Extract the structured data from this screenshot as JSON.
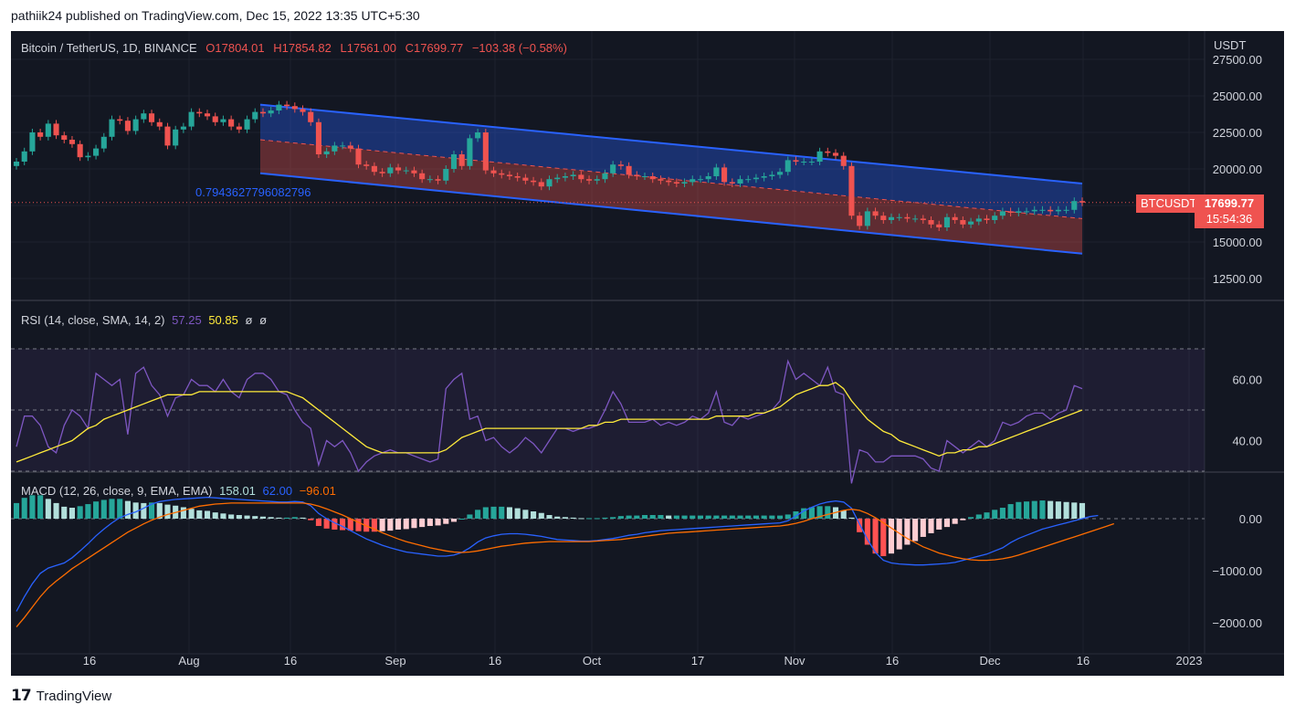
{
  "header": {
    "published": "pathiik24 published on TradingView.com, Dec 15, 2022 13:35 UTC+5:30"
  },
  "brand": {
    "name": "TradingView"
  },
  "legend": {
    "symbol": "Bitcoin / TetherUS, 1D, BINANCE",
    "o": "O17804.01",
    "h": "H17854.82",
    "l": "L17561.00",
    "c": "C17699.77",
    "change": "−103.38 (−0.58%)"
  },
  "price_tag": {
    "ticker": "BTCUSDT",
    "price": "17699.77",
    "countdown": "15:54:36"
  },
  "fib_label": "0.7943627796082796",
  "rsi_legend": {
    "name": "RSI (14, close, SMA, 14, 2)",
    "v1": "57.25",
    "v2": "50.85",
    "v3": "ø",
    "v4": "ø"
  },
  "macd_legend": {
    "name": "MACD (12, 26, close, 9, EMA, EMA)",
    "hist": "158.01",
    "macd": "62.00",
    "signal": "−96.01"
  },
  "colors": {
    "bg": "#131722",
    "up": "#26a69a",
    "down": "#ef5350",
    "channel_line": "#2962ff",
    "rsi": "#7e57c2",
    "rsi_ma": "#ffeb3b",
    "macd": "#2962ff",
    "signal": "#ff6d00"
  },
  "chart_data": [
    {
      "type": "candlestick",
      "currency": "USDT",
      "x_ticks": [
        "16",
        "Aug",
        "16",
        "Sep",
        "16",
        "Oct",
        "17",
        "Nov",
        "16",
        "Dec",
        "16",
        "2023"
      ],
      "y_ticks": [
        "27500.00",
        "25000.00",
        "22500.00",
        "20000.00",
        "17500.00",
        "15000.00",
        "12500.00"
      ],
      "close": [
        20500,
        21200,
        22500,
        22200,
        23100,
        22300,
        22000,
        21700,
        20800,
        20900,
        21400,
        22200,
        23400,
        23300,
        22600,
        23400,
        23800,
        23200,
        22900,
        21600,
        22700,
        22900,
        23900,
        23800,
        23600,
        23200,
        23400,
        22900,
        22700,
        23400,
        23900,
        23800,
        24000,
        24400,
        24300,
        24100,
        23900,
        23200,
        21000,
        21200,
        21600,
        21600,
        21400,
        20300,
        20200,
        19800,
        19700,
        20100,
        19900,
        19900,
        19700,
        19300,
        19300,
        19200,
        20000,
        21000,
        20200,
        22100,
        22500,
        19900,
        19700,
        19600,
        19500,
        19400,
        19200,
        19100,
        18800,
        19300,
        19400,
        19500,
        19600,
        19300,
        19200,
        19300,
        19700,
        20300,
        20200,
        19600,
        19500,
        19500,
        19300,
        19200,
        19100,
        19000,
        19100,
        19300,
        19300,
        19500,
        20100,
        19100,
        19000,
        19300,
        19300,
        19400,
        19500,
        19600,
        19800,
        20600,
        20500,
        20500,
        20500,
        21200,
        21100,
        20900,
        20200,
        16800,
        16100,
        17100,
        16800,
        16500,
        16700,
        16700,
        16600,
        16600,
        16500,
        16200,
        16000,
        16700,
        16500,
        16200,
        16400,
        16600,
        16500,
        16800,
        17100,
        17000,
        17100,
        17100,
        17200,
        17200,
        17100,
        17200,
        17200,
        17800,
        17700
      ],
      "channel": {
        "top": {
          "from": 24400,
          "to": 19000
        },
        "mid": {
          "from": 22000,
          "to": 16600
        },
        "bottom": {
          "from": 19700,
          "to": 14200
        }
      },
      "price_line": 17699.77
    },
    {
      "type": "line",
      "name": "RSI",
      "y_ticks": [
        "60.00",
        "40.00"
      ],
      "bands": [
        30,
        50,
        70
      ],
      "rsi": [
        38,
        48,
        48,
        45,
        38,
        36,
        45,
        50,
        48,
        44,
        62,
        60,
        58,
        60,
        42,
        62,
        64,
        58,
        55,
        48,
        54,
        55,
        60,
        58,
        58,
        56,
        60,
        56,
        54,
        60,
        62,
        62,
        60,
        56,
        55,
        50,
        46,
        44,
        32,
        40,
        38,
        40,
        36,
        30,
        33,
        35,
        36,
        37,
        36,
        36,
        35,
        34,
        33,
        34,
        57,
        60,
        62,
        47,
        48,
        40,
        41,
        38,
        36,
        38,
        41,
        39,
        36,
        40,
        44,
        44,
        43,
        44,
        44,
        45,
        50,
        56,
        52,
        46,
        46,
        46,
        47,
        45,
        46,
        45,
        46,
        48,
        47,
        49,
        56,
        46,
        45,
        48,
        47,
        48,
        49,
        50,
        53,
        66,
        60,
        62,
        60,
        58,
        64,
        56,
        55,
        26,
        37,
        36,
        33,
        33,
        35,
        35,
        35,
        35,
        34,
        31,
        30,
        40,
        38,
        36,
        38,
        40,
        38,
        40,
        46,
        45,
        46,
        48,
        49,
        49,
        47,
        49,
        50,
        58,
        57
      ],
      "rsi_ma": [
        33,
        34,
        35,
        36,
        37,
        38,
        39,
        40,
        42,
        44,
        45,
        47,
        48,
        49,
        50,
        51,
        52,
        53,
        54,
        55,
        55,
        55,
        55,
        56,
        56,
        56,
        56,
        56,
        56,
        56,
        56,
        56,
        56,
        56,
        56,
        55,
        54,
        52,
        50,
        48,
        46,
        44,
        42,
        40,
        38,
        37,
        36,
        36,
        36,
        36,
        36,
        36,
        36,
        36,
        37,
        39,
        41,
        42,
        43,
        44,
        44,
        44,
        44,
        44,
        44,
        44,
        44,
        44,
        44,
        44,
        44,
        44,
        45,
        45,
        46,
        46,
        47,
        47,
        47,
        47,
        47,
        47,
        47,
        47,
        47,
        47,
        47,
        47,
        48,
        48,
        48,
        48,
        48,
        49,
        49,
        50,
        51,
        53,
        55,
        56,
        57,
        58,
        58,
        59,
        57,
        53,
        50,
        47,
        45,
        43,
        42,
        40,
        39,
        38,
        37,
        36,
        35,
        36,
        36,
        37,
        37,
        38,
        38,
        39,
        40,
        41,
        42,
        43,
        44,
        45,
        46,
        47,
        48,
        49,
        50
      ]
    },
    {
      "type": "line",
      "name": "MACD",
      "y_ticks": [
        "0.00",
        "−1000.00",
        "−2000.00"
      ],
      "hist_scale": 1,
      "macd": [
        -1780,
        -1500,
        -1250,
        -1050,
        -950,
        -900,
        -850,
        -750,
        -620,
        -480,
        -330,
        -200,
        -80,
        20,
        80,
        130,
        200,
        280,
        330,
        350,
        370,
        380,
        390,
        400,
        410,
        400,
        390,
        380,
        370,
        360,
        350,
        340,
        330,
        320,
        320,
        330,
        320,
        250,
        100,
        0,
        -80,
        -150,
        -230,
        -310,
        -390,
        -450,
        -510,
        -560,
        -600,
        -640,
        -660,
        -680,
        -700,
        -720,
        -720,
        -700,
        -650,
        -560,
        -450,
        -370,
        -330,
        -300,
        -290,
        -290,
        -300,
        -320,
        -340,
        -370,
        -400,
        -410,
        -420,
        -430,
        -430,
        -420,
        -400,
        -380,
        -350,
        -320,
        -300,
        -270,
        -250,
        -230,
        -220,
        -210,
        -200,
        -190,
        -180,
        -170,
        -160,
        -150,
        -140,
        -130,
        -120,
        -110,
        -100,
        -90,
        -80,
        -40,
        50,
        150,
        220,
        280,
        320,
        340,
        320,
        200,
        -100,
        -400,
        -650,
        -800,
        -850,
        -870,
        -880,
        -890,
        -890,
        -880,
        -870,
        -860,
        -840,
        -800,
        -760,
        -720,
        -680,
        -620,
        -560,
        -460,
        -380,
        -320,
        -260,
        -200,
        -160,
        -120,
        -80,
        -40,
        0,
        40,
        62
      ],
      "signal": [
        -2080,
        -1900,
        -1700,
        -1500,
        -1330,
        -1200,
        -1080,
        -960,
        -860,
        -760,
        -660,
        -560,
        -460,
        -360,
        -260,
        -180,
        -100,
        -30,
        30,
        80,
        120,
        160,
        200,
        240,
        260,
        280,
        290,
        300,
        300,
        300,
        300,
        300,
        300,
        300,
        300,
        300,
        300,
        280,
        240,
        190,
        130,
        70,
        0,
        -70,
        -140,
        -200,
        -270,
        -330,
        -390,
        -440,
        -480,
        -520,
        -560,
        -590,
        -620,
        -640,
        -650,
        -640,
        -620,
        -590,
        -560,
        -530,
        -510,
        -490,
        -470,
        -460,
        -450,
        -440,
        -440,
        -440,
        -440,
        -440,
        -440,
        -430,
        -420,
        -410,
        -400,
        -380,
        -360,
        -340,
        -320,
        -300,
        -280,
        -270,
        -260,
        -250,
        -240,
        -230,
        -220,
        -210,
        -200,
        -190,
        -180,
        -170,
        -160,
        -150,
        -140,
        -120,
        -90,
        -50,
        0,
        40,
        80,
        120,
        160,
        180,
        160,
        100,
        20,
        -80,
        -180,
        -280,
        -380,
        -460,
        -540,
        -600,
        -660,
        -700,
        -740,
        -770,
        -790,
        -800,
        -800,
        -790,
        -770,
        -740,
        -700,
        -650,
        -600,
        -550,
        -500,
        -450,
        -400,
        -350,
        -300,
        -250,
        -200,
        -150,
        -96
      ]
    }
  ]
}
